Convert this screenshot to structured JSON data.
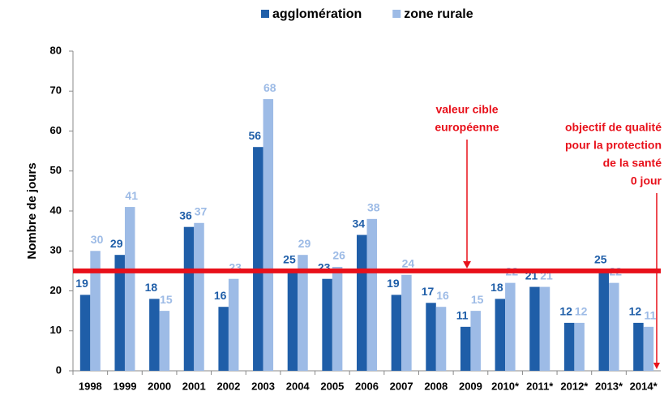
{
  "chart_data": {
    "type": "bar",
    "y_label": "Nombre de jours",
    "categories": [
      "1998",
      "1999",
      "2000",
      "2001",
      "2002",
      "2003",
      "2004",
      "2005",
      "2006",
      "2007",
      "2008",
      "2009",
      "2010*",
      "2011*",
      "2012*",
      "2013*",
      "2014*"
    ],
    "series": [
      {
        "name": "agglomération",
        "color": "#1f5ea8",
        "values": [
          19,
          29,
          18,
          36,
          16,
          56,
          25,
          23,
          34,
          19,
          17,
          11,
          18,
          21,
          12,
          25,
          12
        ]
      },
      {
        "name": "zone rurale",
        "color": "#9dbbe6",
        "values": [
          30,
          41,
          15,
          37,
          23,
          68,
          29,
          26,
          38,
          24,
          16,
          15,
          22,
          21,
          12,
          22,
          11
        ]
      }
    ],
    "ylim": [
      0,
      80
    ],
    "yticks": [
      0,
      10,
      20,
      30,
      40,
      50,
      60,
      70,
      80
    ],
    "annotations": [
      {
        "value": 25,
        "lines": [
          "valeur cible",
          "européenne"
        ],
        "color": "#e8101a"
      },
      {
        "value": 0,
        "lines": [
          "objectif de qualité",
          "pour la protection",
          "de la santé",
          "0 jour"
        ],
        "color": "#e8101a"
      }
    ]
  }
}
